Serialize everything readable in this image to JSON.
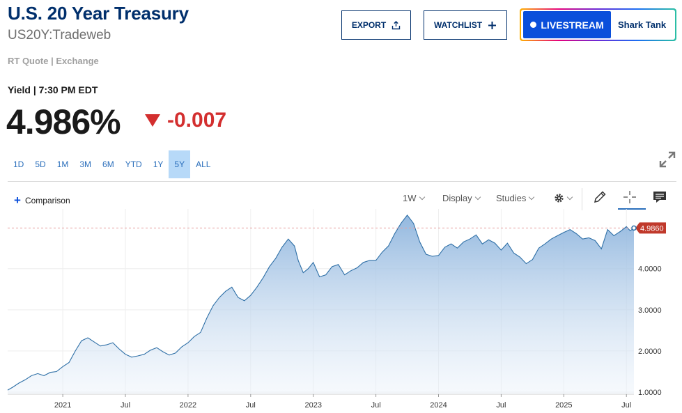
{
  "header": {
    "title": "U.S. 20 Year Treasury",
    "symbol": "US20Y:Tradeweb",
    "quote_source": "RT Quote | Exchange",
    "export_label": "EXPORT",
    "watchlist_label": "WATCHLIST",
    "livestream_label": "LIVESTREAM",
    "show_name": "Shark Tank"
  },
  "quote": {
    "yield_label": "Yield | 7:30 PM EDT",
    "price": "4.986%",
    "change": "-0.007"
  },
  "ranges": [
    "1D",
    "5D",
    "1M",
    "3M",
    "6M",
    "YTD",
    "1Y",
    "5Y",
    "ALL"
  ],
  "active_range": "5Y",
  "toolbar": {
    "comparison": "Comparison",
    "interval": "1W",
    "display": "Display",
    "studies": "Studies"
  },
  "colors": {
    "brand": "#002f6c",
    "negative": "#d32f2f",
    "accent": "#2a6ebb",
    "livestream": "#0a4fdb",
    "line": "#2e6fa6",
    "price_tag": "#c0392b"
  },
  "chart_data": {
    "type": "area",
    "y_ticks": [
      "1.0000",
      "2.0000",
      "3.0000",
      "4.0000"
    ],
    "y_ticks_values": [
      1,
      2,
      3,
      4
    ],
    "x_ticks": [
      "2021",
      "Jul",
      "2022",
      "Jul",
      "2023",
      "Jul",
      "2024",
      "Jul",
      "2025",
      "Jul"
    ],
    "x_ticks_values": [
      2021.0,
      2021.5,
      2022.0,
      2022.5,
      2023.0,
      2023.5,
      2024.0,
      2024.5,
      2025.0,
      2025.5
    ],
    "ylim": [
      0.95,
      5.45
    ],
    "xlim": [
      2020.56,
      2025.56
    ],
    "last_value_label": "4.9860",
    "last_value": 4.986,
    "grid": true,
    "series": [
      {
        "x": [
          2020.56,
          2020.6,
          2020.65,
          2020.7,
          2020.75,
          2020.8,
          2020.85,
          2020.9,
          2020.95,
          2021.0,
          2021.05,
          2021.1,
          2021.15,
          2021.2,
          2021.25,
          2021.3,
          2021.35,
          2021.4,
          2021.45,
          2021.5,
          2021.55,
          2021.6,
          2021.65,
          2021.7,
          2021.75,
          2021.8,
          2021.85,
          2021.9,
          2021.95,
          2022.0,
          2022.05,
          2022.1,
          2022.15,
          2022.2,
          2022.25,
          2022.3,
          2022.35,
          2022.4,
          2022.45,
          2022.5,
          2022.55,
          2022.6,
          2022.65,
          2022.7,
          2022.75,
          2022.8,
          2022.85,
          2022.88,
          2022.92,
          2022.96,
          2023.0,
          2023.05,
          2023.1,
          2023.15,
          2023.2,
          2023.25,
          2023.3,
          2023.35,
          2023.4,
          2023.45,
          2023.5,
          2023.55,
          2023.6,
          2023.65,
          2023.7,
          2023.75,
          2023.8,
          2023.85,
          2023.9,
          2023.95,
          2024.0,
          2024.05,
          2024.1,
          2024.15,
          2024.2,
          2024.25,
          2024.3,
          2024.35,
          2024.4,
          2024.45,
          2024.5,
          2024.55,
          2024.6,
          2024.65,
          2024.7,
          2024.75,
          2024.8,
          2024.85,
          2024.9,
          2024.95,
          2025.0,
          2025.05,
          2025.1,
          2025.15,
          2025.2,
          2025.25,
          2025.3,
          2025.35,
          2025.4,
          2025.45,
          2025.5,
          2025.53,
          2025.56
        ],
        "values": [
          1.05,
          1.12,
          1.22,
          1.3,
          1.4,
          1.45,
          1.4,
          1.48,
          1.5,
          1.62,
          1.72,
          2.0,
          2.25,
          2.32,
          2.22,
          2.12,
          2.15,
          2.2,
          2.05,
          1.92,
          1.85,
          1.88,
          1.92,
          2.02,
          2.08,
          1.98,
          1.9,
          1.95,
          2.1,
          2.2,
          2.35,
          2.45,
          2.8,
          3.1,
          3.3,
          3.45,
          3.55,
          3.3,
          3.22,
          3.35,
          3.55,
          3.78,
          4.05,
          4.25,
          4.52,
          4.72,
          4.55,
          4.2,
          3.9,
          4.0,
          4.15,
          3.8,
          3.85,
          4.05,
          4.1,
          3.85,
          3.95,
          4.02,
          4.15,
          4.2,
          4.2,
          4.4,
          4.55,
          4.85,
          5.1,
          5.3,
          5.1,
          4.65,
          4.35,
          4.3,
          4.32,
          4.52,
          4.6,
          4.5,
          4.65,
          4.72,
          4.82,
          4.6,
          4.7,
          4.62,
          4.45,
          4.62,
          4.38,
          4.28,
          4.12,
          4.22,
          4.5,
          4.6,
          4.72,
          4.8,
          4.88,
          4.95,
          4.85,
          4.72,
          4.75,
          4.68,
          4.48,
          4.95,
          4.8,
          4.9,
          5.02,
          4.92,
          4.986
        ]
      }
    ]
  }
}
